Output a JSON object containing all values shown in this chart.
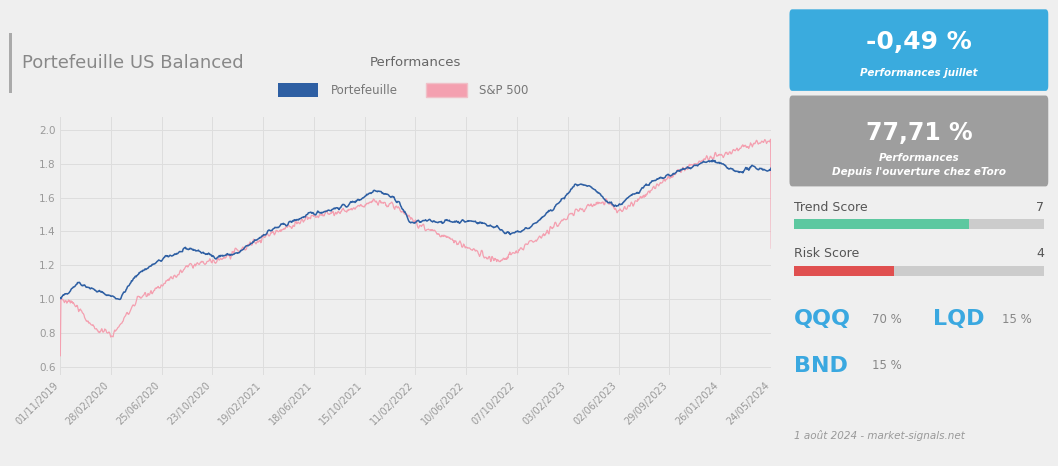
{
  "title": "Portefeuille US Balanced",
  "chart_title": "Performances",
  "bg_color": "#efefef",
  "chart_bg": "#f5f5f5",
  "legend_labels": [
    "Portefeuille",
    "S&P 500"
  ],
  "portfolio_color": "#2e5fa3",
  "sp500_color": "#f4a0b0",
  "x_ticks": [
    "01/11/2019",
    "28/02/2020",
    "25/06/2020",
    "23/10/2020",
    "19/02/2021",
    "18/06/2021",
    "15/10/2021",
    "11/02/2022",
    "10/06/2022",
    "07/10/2022",
    "03/02/2023",
    "02/06/2023",
    "29/09/2023",
    "26/01/2024",
    "24/05/2024"
  ],
  "y_ticks": [
    0.6,
    0.8,
    1.0,
    1.2,
    1.4,
    1.6,
    1.8,
    2.0
  ],
  "ylim": [
    0.55,
    2.08
  ],
  "perf_juillet": "-0,49 %",
  "perf_juillet_label": "Performances juillet",
  "perf_etoro": "77,71 %",
  "perf_etoro_label1": "Performances",
  "perf_etoro_label2": "Depuis l'ouverture chez eToro",
  "trend_score": 7,
  "trend_score_max": 10,
  "trend_color": "#5dc8a0",
  "risk_score": 4,
  "risk_score_max": 10,
  "risk_color": "#e05050",
  "holdings": [
    {
      "name": "QQQ",
      "pct": "70 %"
    },
    {
      "name": "LQD",
      "pct": "15 %"
    },
    {
      "name": "BND",
      "pct": "15 %"
    }
  ],
  "holding_color": "#3aa8e0",
  "holding_pct_color": "#888888",
  "footer": "1 août 2024 - market-signals.net",
  "blue_box_color": "#3aabde",
  "gray_box_color": "#9e9e9e",
  "right_bg": "#e8e8e8",
  "title_bar_color": "#aaaaaa",
  "title_color": "#888888",
  "grid_color": "#dddddd",
  "tick_color": "#aaaaaa",
  "score_label_color": "#555555"
}
